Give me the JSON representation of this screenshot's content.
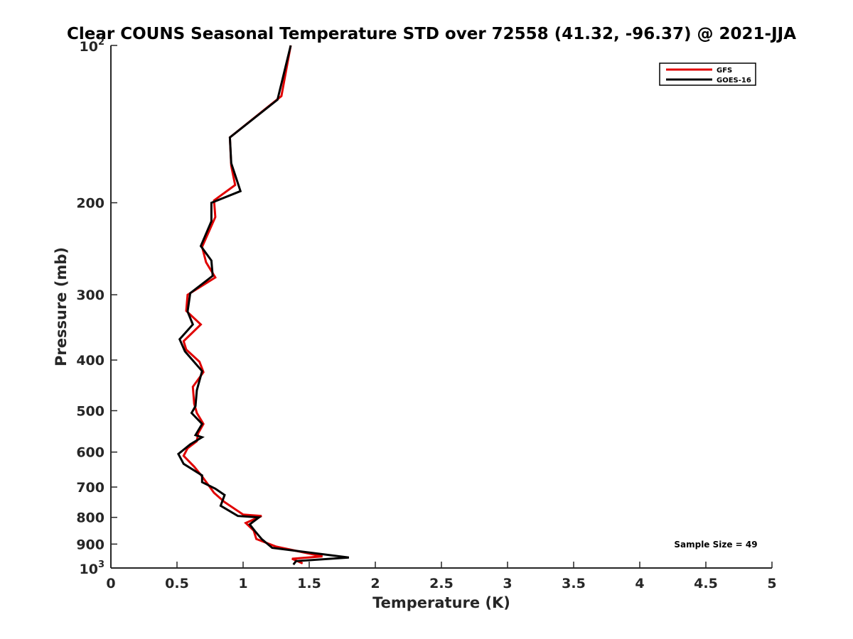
{
  "chart_data": {
    "type": "line",
    "title": "Clear COUNS Seasonal Temperature STD over 72558 (41.32, -96.37) @ 2021-JJA",
    "xlabel": "Temperature (K)",
    "ylabel": "Pressure (mb)",
    "xlim": [
      0,
      5
    ],
    "ylim": [
      100,
      1000
    ],
    "yscale": "log",
    "y_reversed": true,
    "legend_position": "top-right",
    "x_ticks": [
      0,
      0.5,
      1,
      1.5,
      2,
      2.5,
      3,
      3.5,
      4,
      4.5,
      5
    ],
    "x_tick_labels": [
      "0",
      "0.5",
      "1",
      "1.5",
      "2",
      "2.5",
      "3",
      "3.5",
      "4",
      "4.5",
      "5"
    ],
    "y_ticks": [
      200,
      300,
      400,
      500,
      600,
      700,
      800,
      900
    ],
    "y_tick_labels": [
      "200",
      "300",
      "400",
      "500",
      "600",
      "700",
      "800",
      "900"
    ],
    "y_edge_labels": [
      {
        "value": 100,
        "base": "10",
        "exp": "2"
      },
      {
        "value": 1000,
        "base": "10",
        "exp": "3"
      }
    ],
    "annotation": "Sample Size = 49",
    "series": [
      {
        "name": "GFS",
        "color": "#e00000",
        "points": [
          [
            1.36,
            100
          ],
          [
            1.29,
            125
          ],
          [
            0.9,
            150
          ],
          [
            0.91,
            170
          ],
          [
            0.94,
            185
          ],
          [
            0.78,
            198
          ],
          [
            0.79,
            213
          ],
          [
            0.69,
            243
          ],
          [
            0.72,
            260
          ],
          [
            0.79,
            278
          ],
          [
            0.58,
            300
          ],
          [
            0.57,
            322
          ],
          [
            0.68,
            342
          ],
          [
            0.55,
            368
          ],
          [
            0.57,
            382
          ],
          [
            0.67,
            403
          ],
          [
            0.7,
            422
          ],
          [
            0.62,
            450
          ],
          [
            0.63,
            485
          ],
          [
            0.65,
            505
          ],
          [
            0.7,
            530
          ],
          [
            0.66,
            552
          ],
          [
            0.65,
            572
          ],
          [
            0.58,
            590
          ],
          [
            0.55,
            610
          ],
          [
            0.63,
            640
          ],
          [
            0.69,
            668
          ],
          [
            0.74,
            695
          ],
          [
            0.78,
            718
          ],
          [
            0.86,
            748
          ],
          [
            1.0,
            790
          ],
          [
            1.14,
            795
          ],
          [
            1.02,
            820
          ],
          [
            1.08,
            848
          ],
          [
            1.1,
            880
          ],
          [
            1.25,
            910
          ],
          [
            1.6,
            950
          ],
          [
            1.37,
            960
          ],
          [
            1.45,
            980
          ]
        ]
      },
      {
        "name": "GOES-16",
        "color": "#000000",
        "points": [
          [
            1.36,
            100
          ],
          [
            1.26,
            127
          ],
          [
            0.9,
            150
          ],
          [
            0.91,
            168
          ],
          [
            0.98,
            190
          ],
          [
            0.76,
            200
          ],
          [
            0.76,
            217
          ],
          [
            0.68,
            242
          ],
          [
            0.76,
            258
          ],
          [
            0.77,
            276
          ],
          [
            0.6,
            298
          ],
          [
            0.58,
            323
          ],
          [
            0.62,
            342
          ],
          [
            0.52,
            365
          ],
          [
            0.56,
            385
          ],
          [
            0.69,
            420
          ],
          [
            0.65,
            457
          ],
          [
            0.64,
            490
          ],
          [
            0.61,
            505
          ],
          [
            0.69,
            530
          ],
          [
            0.64,
            557
          ],
          [
            0.69,
            562
          ],
          [
            0.6,
            580
          ],
          [
            0.51,
            605
          ],
          [
            0.55,
            632
          ],
          [
            0.69,
            665
          ],
          [
            0.69,
            685
          ],
          [
            0.79,
            705
          ],
          [
            0.86,
            725
          ],
          [
            0.83,
            760
          ],
          [
            0.96,
            795
          ],
          [
            1.12,
            800
          ],
          [
            1.05,
            825
          ],
          [
            1.09,
            850
          ],
          [
            1.14,
            880
          ],
          [
            1.22,
            915
          ],
          [
            1.8,
            955
          ],
          [
            1.4,
            970
          ],
          [
            1.38,
            985
          ]
        ]
      }
    ]
  }
}
